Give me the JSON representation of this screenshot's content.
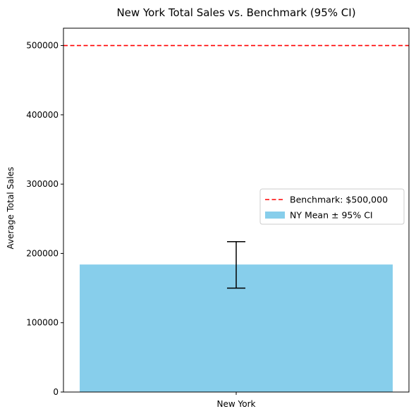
{
  "chart_data": {
    "type": "bar",
    "title": "New York Total Sales vs. Benchmark (95% CI)",
    "xlabel": "",
    "ylabel": "Average Total Sales",
    "categories": [
      "New York"
    ],
    "series": [
      {
        "name": "NY Mean ± 95% CI",
        "values": [
          184000
        ],
        "ci_lower": [
          150000
        ],
        "ci_upper": [
          217000
        ],
        "color": "#87CEEB"
      }
    ],
    "reference_lines": [
      {
        "label": "Benchmark: $500,000",
        "value": 500000,
        "color": "#FF0000",
        "style": "dashed"
      }
    ],
    "ylim": [
      0,
      525000
    ],
    "yticks": [
      0,
      100000,
      200000,
      300000,
      400000,
      500000
    ],
    "ytick_labels": [
      "0",
      "100000",
      "200000",
      "300000",
      "400000",
      "500000"
    ],
    "grid": false,
    "legend_position": "center-right"
  }
}
